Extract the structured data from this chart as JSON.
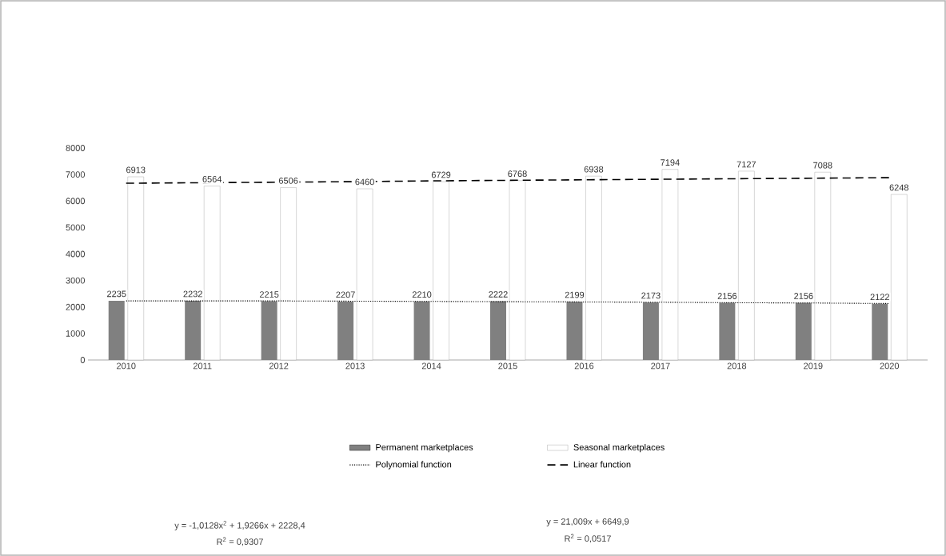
{
  "chart_data": {
    "type": "bar",
    "categories": [
      "2010",
      "2011",
      "2012",
      "2013",
      "2014",
      "2015",
      "2016",
      "2017",
      "2018",
      "2019",
      "2020"
    ],
    "series": [
      {
        "name": "Permanent marketplaces",
        "color": "#808080",
        "values": [
          2235,
          2232,
          2215,
          2207,
          2210,
          2222,
          2199,
          2173,
          2156,
          2156,
          2122
        ],
        "value_labels": [
          "2235",
          "2232",
          "2215",
          "2207",
          "2210",
          "2222",
          "2199",
          "2173",
          "2156",
          "2156",
          "2122"
        ]
      },
      {
        "name": "Seasonal marketplaces",
        "color": "#ffffff",
        "values": [
          6913,
          6564,
          6506,
          6460,
          6729,
          6768,
          6938,
          7194,
          7127,
          7088,
          6248
        ],
        "value_labels": [
          "6913",
          "6564",
          "6506",
          "6460",
          "6729",
          "6768",
          "6938",
          "7194",
          "7127",
          "7088",
          "6248"
        ]
      },
      {
        "name": "Polynomial function",
        "type": "line",
        "color": "#000000",
        "line_style": "dotted",
        "values": [
          2230,
          2230,
          2230,
          2220,
          2210,
          2200,
          2190,
          2180,
          2160,
          2150,
          2130
        ]
      },
      {
        "name": "Linear function",
        "type": "line",
        "color": "#000000",
        "line_style": "dashed",
        "values": [
          6670,
          6690,
          6710,
          6730,
          6760,
          6780,
          6800,
          6820,
          6840,
          6860,
          6880
        ]
      }
    ],
    "ylim": [
      0,
      8000
    ],
    "yticks": [
      0,
      1000,
      2000,
      3000,
      4000,
      5000,
      6000,
      7000,
      8000
    ],
    "grid": false,
    "legend": "bottom",
    "annotations": [
      "y = -1,0128x$^{2}$ + 1,9266x + 2228,4",
      "R$^{2}$ = 0,9307",
      "y = 21,009x + 6649,9",
      "R$^{2}$ = 0,0517"
    ]
  }
}
